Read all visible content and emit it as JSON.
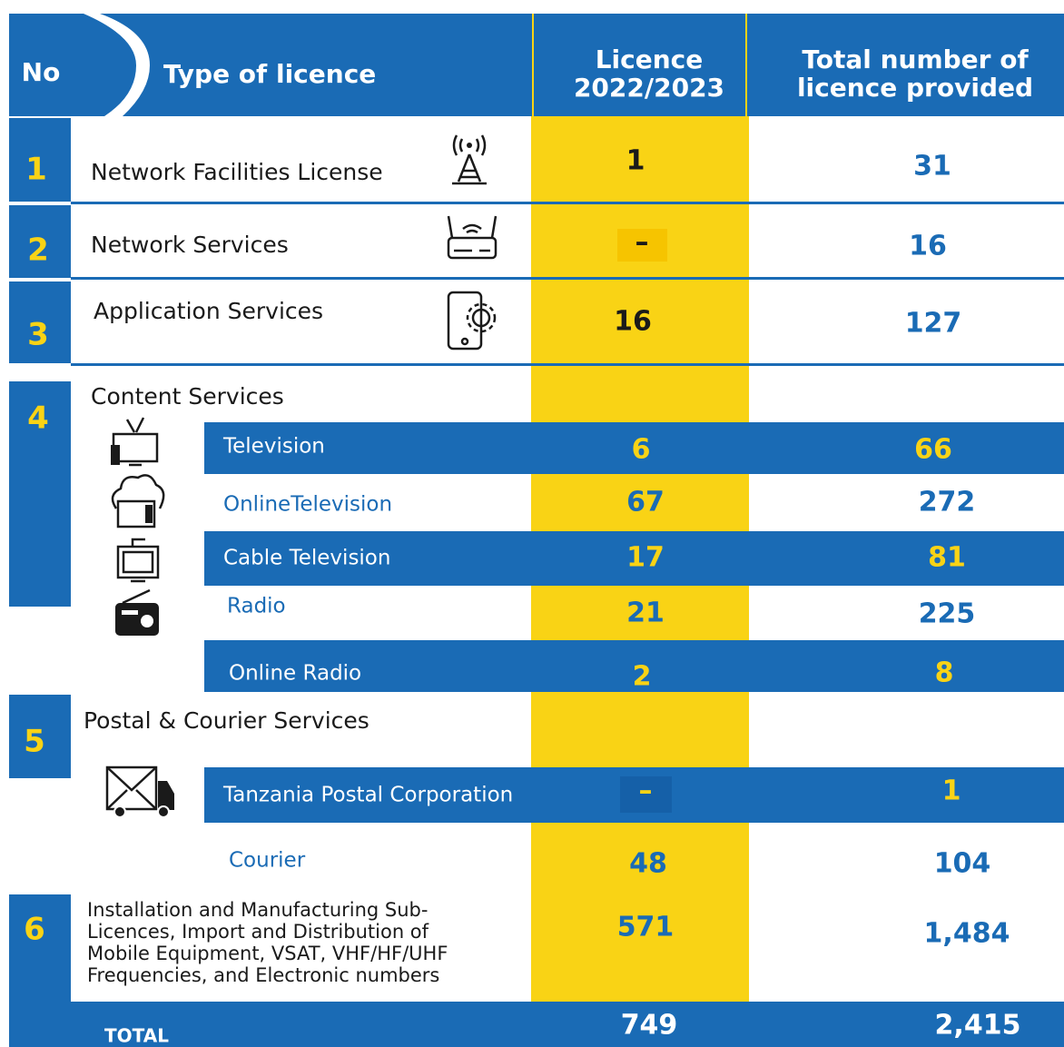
{
  "header": {
    "no": "No",
    "type": "Type of licence",
    "licence": [
      "Licence",
      "2022/2023"
    ],
    "total": [
      "Total number of",
      "licence provided"
    ]
  },
  "rows": [
    {
      "no": 1,
      "type": "Network Facilities License",
      "licence": 1,
      "total": 31
    },
    {
      "no": 2,
      "type": "Network Services",
      "licence": "–",
      "total": 16
    },
    {
      "no": 3,
      "type": "Application Services",
      "licence": 16,
      "total": 127
    },
    {
      "no": 4,
      "type": "Content Services",
      "items": [
        {
          "type": "Television",
          "licence": 6,
          "total": 66
        },
        {
          "type": "OnlineTelevision",
          "licence": 67,
          "total": 272
        },
        {
          "type": "Cable Television",
          "licence": 17,
          "total": 81
        },
        {
          "type": "Radio",
          "licence": 21,
          "total": 225
        },
        {
          "type": "Online Radio",
          "licence": 2,
          "total": 8
        }
      ]
    },
    {
      "no": 5,
      "type": "Postal & Courier Services",
      "items": [
        {
          "type": "Tanzania Postal Corporation",
          "licence": "–",
          "total": 1
        },
        {
          "type": "Courier",
          "licence": 48,
          "total": 104
        }
      ]
    },
    {
      "no": 6,
      "type": [
        "Installation and Manufacturing Sub-",
        "Licences, Import and Distribution of",
        "Mobile Equipment, VSAT, VHF/HF/UHF",
        "Frequencies, and Electronic numbers"
      ],
      "licence": 571,
      "total": "1,484"
    }
  ],
  "footer": {
    "label": "TOTAL",
    "licence": 749,
    "total": "2,415"
  }
}
